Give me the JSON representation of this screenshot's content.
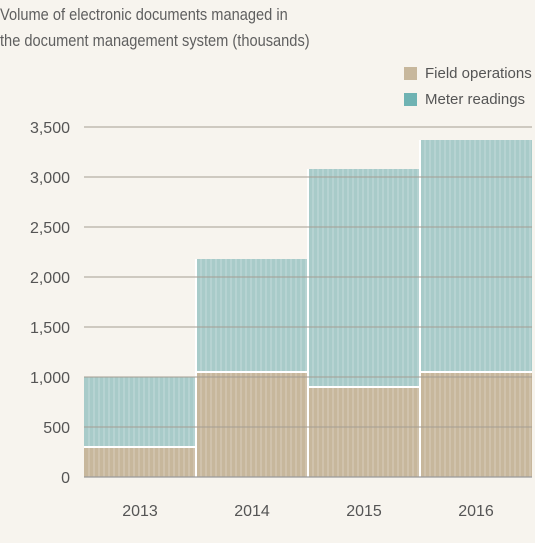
{
  "chart_data": {
    "type": "bar",
    "stacked": true,
    "title_lines": [
      "Volume of electronic documents managed in",
      "the document management system (thousands)"
    ],
    "xlabel": "",
    "ylabel": "",
    "categories": [
      "2013",
      "2014",
      "2015",
      "2016"
    ],
    "series": [
      {
        "name": "Field operations",
        "values": [
          300,
          1050,
          900,
          1050
        ],
        "color": "#c7b79c"
      },
      {
        "name": "Meter readings",
        "values": [
          700,
          1130,
          2180,
          2320
        ],
        "color": "#a8cbc9"
      }
    ],
    "ylim": [
      0,
      3500
    ],
    "yticks": [
      0,
      500,
      1000,
      1500,
      2000,
      2500,
      3000,
      3500
    ],
    "ytick_labels": [
      "0",
      "500",
      "1,000",
      "1,500",
      "2,000",
      "2,500",
      "3,000",
      "3,500"
    ],
    "legend": {
      "position": "top-right",
      "items": [
        {
          "label": "Field operations",
          "color": "#c7b79c"
        },
        {
          "label": "Meter readings",
          "color": "#6fb3b3"
        }
      ]
    },
    "grid": true
  }
}
